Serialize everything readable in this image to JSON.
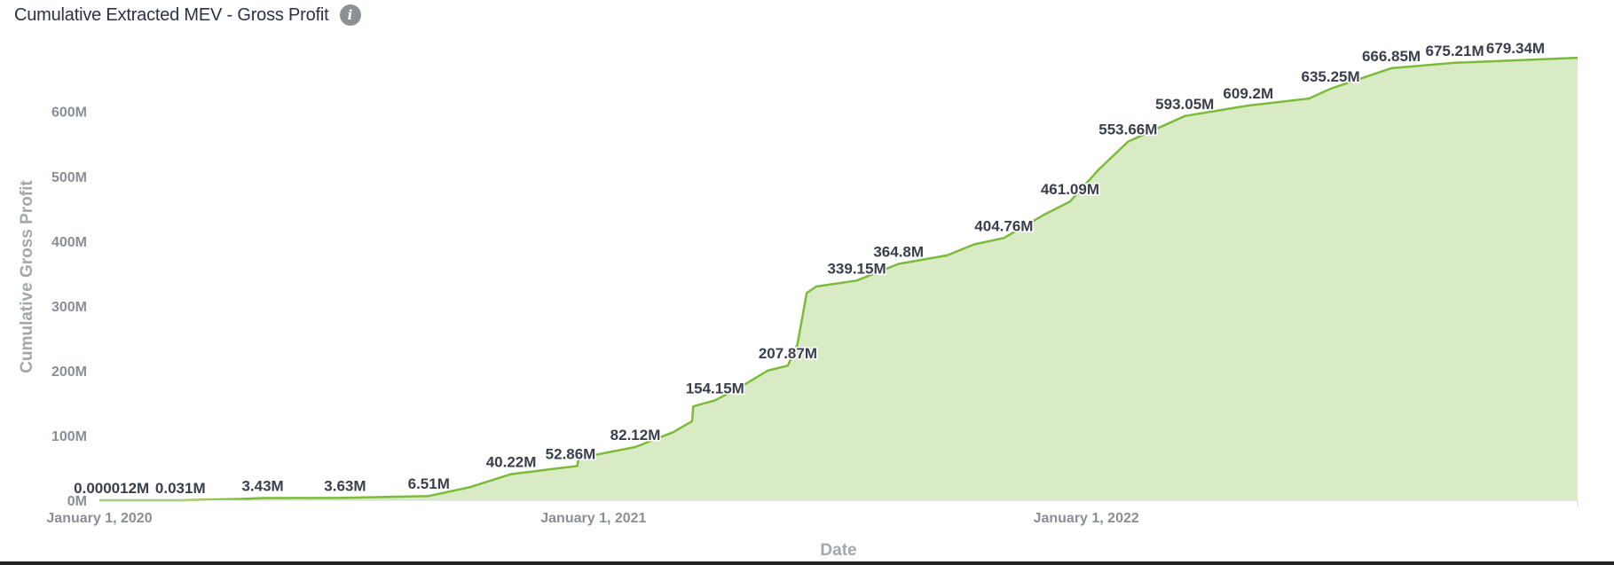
{
  "header": {
    "title": "Cumulative Extracted MEV - Gross Profit",
    "info_icon": "info-icon"
  },
  "colors": {
    "line": "#7cbb3a",
    "fill": "#d8ebc5"
  },
  "chart_data": {
    "type": "area",
    "xlabel": "Date",
    "ylabel": "Cumulative Gross Profit",
    "x_range": [
      "2020-01-01",
      "2022-12-31"
    ],
    "ylim": [
      0,
      690
    ],
    "y_unit": "M",
    "y_ticks": [
      "0M",
      "100M",
      "200M",
      "300M",
      "400M",
      "500M",
      "600M"
    ],
    "x_ticks": [
      {
        "date": "2020-01-01",
        "label": "January 1, 2020"
      },
      {
        "date": "2021-01-01",
        "label": "January 1, 2021"
      },
      {
        "date": "2022-01-01",
        "label": "January 1, 2022"
      }
    ],
    "grid": false,
    "legend": "none",
    "points": [
      {
        "x": "2020-01-01",
        "y": 1.2e-05
      },
      {
        "x": "2020-03-01",
        "y": 0.031
      },
      {
        "x": "2020-04-15",
        "y": 2
      },
      {
        "x": "2020-05-01",
        "y": 3.43
      },
      {
        "x": "2020-06-15",
        "y": 3.5
      },
      {
        "x": "2020-07-01",
        "y": 3.63
      },
      {
        "x": "2020-08-01",
        "y": 5
      },
      {
        "x": "2020-09-01",
        "y": 6.51
      },
      {
        "x": "2020-10-01",
        "y": 20
      },
      {
        "x": "2020-11-01",
        "y": 40.22
      },
      {
        "x": "2020-12-01",
        "y": 48
      },
      {
        "x": "2020-12-20",
        "y": 52.86
      },
      {
        "x": "2020-12-21",
        "y": 65
      },
      {
        "x": "2021-02-01",
        "y": 82.12
      },
      {
        "x": "2021-03-01",
        "y": 105
      },
      {
        "x": "2021-03-15",
        "y": 122
      },
      {
        "x": "2021-03-16",
        "y": 145
      },
      {
        "x": "2021-04-01",
        "y": 154.15
      },
      {
        "x": "2021-04-20",
        "y": 175
      },
      {
        "x": "2021-05-10",
        "y": 200
      },
      {
        "x": "2021-05-25",
        "y": 207.87
      },
      {
        "x": "2021-06-01",
        "y": 240
      },
      {
        "x": "2021-06-08",
        "y": 320
      },
      {
        "x": "2021-06-15",
        "y": 330
      },
      {
        "x": "2021-07-15",
        "y": 339.15
      },
      {
        "x": "2021-08-15",
        "y": 364.8
      },
      {
        "x": "2021-09-20",
        "y": 378
      },
      {
        "x": "2021-10-10",
        "y": 395
      },
      {
        "x": "2021-11-01",
        "y": 404.76
      },
      {
        "x": "2021-12-01",
        "y": 441
      },
      {
        "x": "2021-12-20",
        "y": 461.09
      },
      {
        "x": "2022-01-10",
        "y": 510
      },
      {
        "x": "2022-02-01",
        "y": 553.66
      },
      {
        "x": "2022-03-15",
        "y": 593.05
      },
      {
        "x": "2022-05-01",
        "y": 609.2
      },
      {
        "x": "2022-06-15",
        "y": 620
      },
      {
        "x": "2022-07-01",
        "y": 635.25
      },
      {
        "x": "2022-08-15",
        "y": 666.85
      },
      {
        "x": "2022-10-01",
        "y": 675.21
      },
      {
        "x": "2022-12-31",
        "y": 683
      }
    ],
    "annotations": [
      {
        "x": "2020-01-10",
        "y": 1.2e-05,
        "label": "0.000012M"
      },
      {
        "x": "2020-03-01",
        "y": 0.031,
        "label": "0.031M"
      },
      {
        "x": "2020-05-01",
        "y": 3.43,
        "label": "3.43M"
      },
      {
        "x": "2020-07-01",
        "y": 3.63,
        "label": "3.63M"
      },
      {
        "x": "2020-09-01",
        "y": 6.51,
        "label": "6.51M"
      },
      {
        "x": "2020-11-01",
        "y": 40.22,
        "label": "40.22M"
      },
      {
        "x": "2020-12-15",
        "y": 52.86,
        "label": "52.86M"
      },
      {
        "x": "2021-02-01",
        "y": 82.12,
        "label": "82.12M"
      },
      {
        "x": "2021-04-01",
        "y": 154.15,
        "label": "154.15M"
      },
      {
        "x": "2021-05-25",
        "y": 207.87,
        "label": "207.87M"
      },
      {
        "x": "2021-07-15",
        "y": 339.15,
        "label": "339.15M"
      },
      {
        "x": "2021-08-15",
        "y": 364.8,
        "label": "364.8M"
      },
      {
        "x": "2021-11-01",
        "y": 404.76,
        "label": "404.76M"
      },
      {
        "x": "2021-12-20",
        "y": 461.09,
        "label": "461.09M"
      },
      {
        "x": "2022-02-01",
        "y": 553.66,
        "label": "553.66M"
      },
      {
        "x": "2022-03-15",
        "y": 593.05,
        "label": "593.05M"
      },
      {
        "x": "2022-05-01",
        "y": 609.2,
        "label": "609.2M"
      },
      {
        "x": "2022-07-01",
        "y": 635.25,
        "label": "635.25M"
      },
      {
        "x": "2022-08-15",
        "y": 666.85,
        "label": "666.85M"
      },
      {
        "x": "2022-10-01",
        "y": 675.21,
        "label": "675.21M"
      },
      {
        "x": "2022-11-15",
        "y": 679.34,
        "label": "679.34M"
      }
    ]
  }
}
